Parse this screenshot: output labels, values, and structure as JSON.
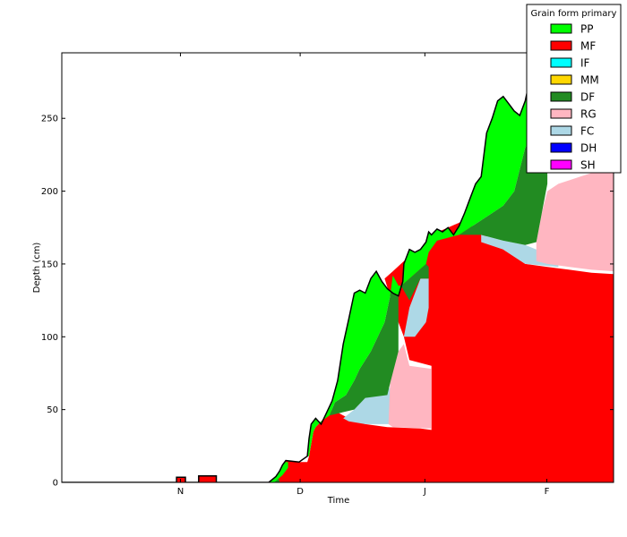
{
  "chart_data": {
    "type": "area",
    "title": "",
    "xlabel": "Time",
    "ylabel": "Depth (cm)",
    "xlim": [
      0,
      100
    ],
    "ylim": [
      0,
      295
    ],
    "x_ticks": [
      {
        "label": "N",
        "x": 21.5
      },
      {
        "label": "D",
        "x": 43.2
      },
      {
        "label": "J",
        "x": 65.8
      },
      {
        "label": "F",
        "x": 87.9
      }
    ],
    "y_ticks": [
      0,
      50,
      100,
      150,
      200,
      250
    ],
    "legend": {
      "title": "Grain form primary",
      "position": "top-right",
      "entries": [
        {
          "label": "PP",
          "color": "#00ff00"
        },
        {
          "label": "MF",
          "color": "#ff0000"
        },
        {
          "label": "IF",
          "color": "#00ffff"
        },
        {
          "label": "MM",
          "color": "#ffd700"
        },
        {
          "label": "DF",
          "color": "#228b22"
        },
        {
          "label": "RG",
          "color": "#ffb6c1"
        },
        {
          "label": "FC",
          "color": "#add8e6"
        },
        {
          "label": "DH",
          "color": "#0000ff"
        },
        {
          "label": "SH",
          "color": "#ff00ff"
        }
      ]
    },
    "layers": [
      {
        "name": "MF",
        "color": "#ff0000",
        "points": [
          [
            0,
            0
          ],
          [
            20.8,
            0
          ],
          [
            20.8,
            3.5
          ],
          [
            22.4,
            3.5
          ],
          [
            22.4,
            0
          ],
          [
            24.8,
            0
          ],
          [
            24.8,
            4.5
          ],
          [
            28,
            4.5
          ],
          [
            28,
            0
          ],
          [
            38.5,
            0
          ],
          [
            39,
            3
          ],
          [
            39.5,
            6
          ],
          [
            40,
            9
          ],
          [
            40.6,
            15
          ],
          [
            43,
            14
          ],
          [
            44.5,
            14
          ],
          [
            44.8,
            18
          ],
          [
            45.6,
            35
          ],
          [
            46,
            38
          ],
          [
            47,
            42
          ],
          [
            48,
            46
          ],
          [
            49,
            50
          ],
          [
            52,
            44
          ],
          [
            55,
            40
          ],
          [
            59,
            38
          ],
          [
            65,
            37
          ],
          [
            67,
            36
          ],
          [
            67,
            80
          ],
          [
            63,
            84
          ],
          [
            62,
            100
          ],
          [
            60,
            120
          ],
          [
            59.5,
            128
          ],
          [
            58.5,
            140
          ],
          [
            60,
            145
          ],
          [
            62,
            152
          ],
          [
            65,
            160
          ],
          [
            66,
            165
          ],
          [
            67,
            170
          ],
          [
            70,
            175
          ],
          [
            73,
            180
          ],
          [
            76,
            172
          ],
          [
            80,
            160
          ],
          [
            84,
            150
          ],
          [
            88,
            148
          ],
          [
            92,
            146
          ],
          [
            96,
            144
          ],
          [
            100,
            143
          ],
          [
            100,
            0
          ]
        ]
      },
      {
        "name": "FC",
        "color": "#add8e6",
        "points": [
          [
            51,
            44
          ],
          [
            53,
            50
          ],
          [
            55,
            58
          ],
          [
            58,
            62
          ],
          [
            60,
            66
          ],
          [
            60.6,
            40
          ],
          [
            55,
            40
          ],
          [
            52,
            42
          ]
        ]
      },
      {
        "name": "FC",
        "color": "#add8e6",
        "points": [
          [
            62,
            100
          ],
          [
            63,
            120
          ],
          [
            65,
            140
          ],
          [
            66.5,
            140
          ],
          [
            66.5,
            120
          ],
          [
            66,
            110
          ],
          [
            64,
            100
          ]
        ]
      },
      {
        "name": "FC",
        "color": "#add8e6",
        "points": [
          [
            76,
            170
          ],
          [
            80,
            166
          ],
          [
            84,
            163
          ],
          [
            86,
            160
          ],
          [
            88,
            158
          ],
          [
            90,
            156
          ],
          [
            90,
            148
          ],
          [
            84,
            150
          ],
          [
            80,
            160
          ],
          [
            76,
            165
          ]
        ]
      },
      {
        "name": "RG",
        "color": "#ffb6c1",
        "points": [
          [
            59.2,
            40
          ],
          [
            59.5,
            68
          ],
          [
            60,
            78
          ],
          [
            61,
            90
          ],
          [
            62,
            95
          ],
          [
            63,
            80
          ],
          [
            67,
            78
          ],
          [
            67,
            37
          ],
          [
            60,
            38
          ]
        ]
      },
      {
        "name": "RG",
        "color": "#ffb6c1",
        "points": [
          [
            86,
            165
          ],
          [
            87,
            185
          ],
          [
            88,
            200
          ],
          [
            90,
            205
          ],
          [
            94,
            210
          ],
          [
            98,
            215
          ],
          [
            100,
            218
          ],
          [
            100,
            145
          ],
          [
            96,
            146
          ],
          [
            92,
            148
          ],
          [
            88,
            150
          ],
          [
            86,
            152
          ]
        ]
      },
      {
        "name": "DF",
        "color": "#228b22",
        "points": [
          [
            2,
            0
          ],
          [
            2,
            0
          ]
        ]
      },
      {
        "name": "DF",
        "color": "#228b22",
        "points": [
          [
            38,
            0
          ],
          [
            38.5,
            3
          ],
          [
            39,
            6
          ],
          [
            39.5,
            0
          ]
        ]
      },
      {
        "name": "DF",
        "color": "#228b22",
        "points": [
          [
            48.5,
            46
          ],
          [
            49.5,
            55
          ],
          [
            51.5,
            60
          ],
          [
            53,
            70
          ],
          [
            54,
            78
          ],
          [
            56,
            90
          ],
          [
            58.5,
            110
          ],
          [
            59.5,
            128
          ],
          [
            60,
            142
          ],
          [
            61,
            135
          ],
          [
            61,
            90
          ],
          [
            59.5,
            68
          ],
          [
            59,
            60
          ],
          [
            55,
            58
          ],
          [
            53,
            50
          ]
        ]
      },
      {
        "name": "DF",
        "color": "#228b22",
        "points": [
          [
            61.5,
            135
          ],
          [
            63,
            140
          ],
          [
            64.5,
            145
          ],
          [
            66,
            150
          ],
          [
            66.5,
            148
          ],
          [
            66.5,
            140
          ],
          [
            65,
            140
          ],
          [
            63,
            125
          ]
        ]
      },
      {
        "name": "DF",
        "color": "#228b22",
        "points": [
          [
            72,
            170
          ],
          [
            74,
            175
          ],
          [
            76,
            180
          ],
          [
            78,
            185
          ],
          [
            80,
            190
          ],
          [
            82,
            200
          ],
          [
            84,
            230
          ],
          [
            86,
            240
          ],
          [
            87,
            232
          ],
          [
            88,
            222
          ],
          [
            88,
            205
          ],
          [
            87,
            185
          ],
          [
            86,
            165
          ],
          [
            84,
            163
          ],
          [
            80,
            166
          ],
          [
            76,
            170
          ]
        ]
      },
      {
        "name": "PP",
        "color": "#00ff00",
        "points": [
          [
            37.5,
            0
          ],
          [
            38.8,
            4
          ],
          [
            39.5,
            8
          ],
          [
            40,
            12
          ],
          [
            40.5,
            14
          ],
          [
            41,
            14
          ],
          [
            41,
            10
          ],
          [
            40,
            5
          ],
          [
            38.5,
            0
          ]
        ]
      },
      {
        "name": "PP",
        "color": "#00ff00",
        "points": [
          [
            44.5,
            18
          ],
          [
            44.8,
            30
          ],
          [
            45.2,
            40
          ],
          [
            46,
            44
          ],
          [
            47,
            40
          ],
          [
            48,
            48
          ],
          [
            49,
            56
          ],
          [
            50,
            70
          ],
          [
            51,
            95
          ],
          [
            52,
            112
          ],
          [
            53,
            130
          ],
          [
            54,
            132
          ],
          [
            55,
            130
          ],
          [
            56,
            140
          ],
          [
            57,
            145
          ],
          [
            58,
            138
          ],
          [
            59,
            133
          ],
          [
            60,
            130
          ],
          [
            61,
            128
          ],
          [
            61.8,
            138
          ],
          [
            62,
            150
          ],
          [
            63,
            160
          ],
          [
            64,
            158
          ],
          [
            65,
            160
          ],
          [
            66,
            165
          ],
          [
            66.5,
            172
          ],
          [
            67,
            170
          ],
          [
            68,
            174
          ],
          [
            69,
            172
          ],
          [
            70,
            175
          ],
          [
            71,
            170
          ],
          [
            72,
            176
          ],
          [
            73,
            185
          ],
          [
            74,
            195
          ],
          [
            75,
            205
          ],
          [
            76,
            210
          ],
          [
            77,
            240
          ],
          [
            78,
            250
          ],
          [
            79,
            262
          ],
          [
            80,
            265
          ],
          [
            81,
            260
          ],
          [
            82,
            255
          ],
          [
            83,
            252
          ],
          [
            84,
            262
          ],
          [
            85,
            280
          ],
          [
            86,
            285
          ],
          [
            87,
            284
          ],
          [
            88,
            283
          ],
          [
            88,
            222
          ],
          [
            86,
            240
          ],
          [
            84,
            230
          ],
          [
            82,
            200
          ],
          [
            80,
            190
          ],
          [
            78,
            185
          ],
          [
            76,
            180
          ],
          [
            74,
            175
          ],
          [
            72,
            170
          ],
          [
            70,
            168
          ],
          [
            68,
            166
          ],
          [
            66.5,
            158
          ],
          [
            66,
            150
          ],
          [
            64.5,
            145
          ],
          [
            63,
            140
          ],
          [
            61.5,
            135
          ],
          [
            61,
            135
          ],
          [
            60,
            142
          ],
          [
            59.5,
            128
          ],
          [
            58.5,
            110
          ],
          [
            56,
            90
          ],
          [
            54,
            78
          ],
          [
            53,
            70
          ],
          [
            51.5,
            60
          ],
          [
            49.5,
            55
          ],
          [
            48.5,
            46
          ],
          [
            47,
            42
          ],
          [
            46,
            38
          ],
          [
            45.6,
            35
          ],
          [
            44.8,
            18
          ]
        ]
      }
    ],
    "outline": [
      [
        0,
        0
      ],
      [
        20.8,
        0
      ],
      [
        20.8,
        3.5
      ],
      [
        22.4,
        3.5
      ],
      [
        22.4,
        0
      ],
      [
        24.8,
        0
      ],
      [
        24.8,
        4.5
      ],
      [
        28,
        4.5
      ],
      [
        28,
        0
      ],
      [
        37.5,
        0
      ],
      [
        38.8,
        4
      ],
      [
        39.5,
        8
      ],
      [
        40,
        12
      ],
      [
        40.6,
        15
      ],
      [
        43,
        14
      ],
      [
        44.5,
        18
      ],
      [
        44.8,
        30
      ],
      [
        45.2,
        40
      ],
      [
        46,
        44
      ],
      [
        47,
        40
      ],
      [
        48,
        48
      ],
      [
        49,
        56
      ],
      [
        50,
        70
      ],
      [
        51,
        95
      ],
      [
        52,
        112
      ],
      [
        53,
        130
      ],
      [
        54,
        132
      ],
      [
        55,
        130
      ],
      [
        56,
        140
      ],
      [
        57,
        145
      ],
      [
        58,
        138
      ],
      [
        59,
        133
      ],
      [
        60,
        130
      ],
      [
        61,
        128
      ],
      [
        61.8,
        138
      ],
      [
        62,
        150
      ],
      [
        63,
        160
      ],
      [
        64,
        158
      ],
      [
        65,
        160
      ],
      [
        66,
        165
      ],
      [
        66.5,
        172
      ],
      [
        67,
        170
      ],
      [
        68,
        174
      ],
      [
        69,
        172
      ],
      [
        70,
        175
      ],
      [
        71,
        170
      ],
      [
        72,
        176
      ],
      [
        73,
        185
      ],
      [
        74,
        195
      ],
      [
        75,
        205
      ],
      [
        76,
        210
      ],
      [
        77,
        240
      ],
      [
        78,
        250
      ],
      [
        79,
        262
      ],
      [
        80,
        265
      ],
      [
        81,
        260
      ],
      [
        82,
        255
      ],
      [
        83,
        252
      ],
      [
        84,
        262
      ],
      [
        85,
        280
      ],
      [
        86,
        285
      ],
      [
        87,
        284
      ],
      [
        88,
        283
      ]
    ]
  }
}
